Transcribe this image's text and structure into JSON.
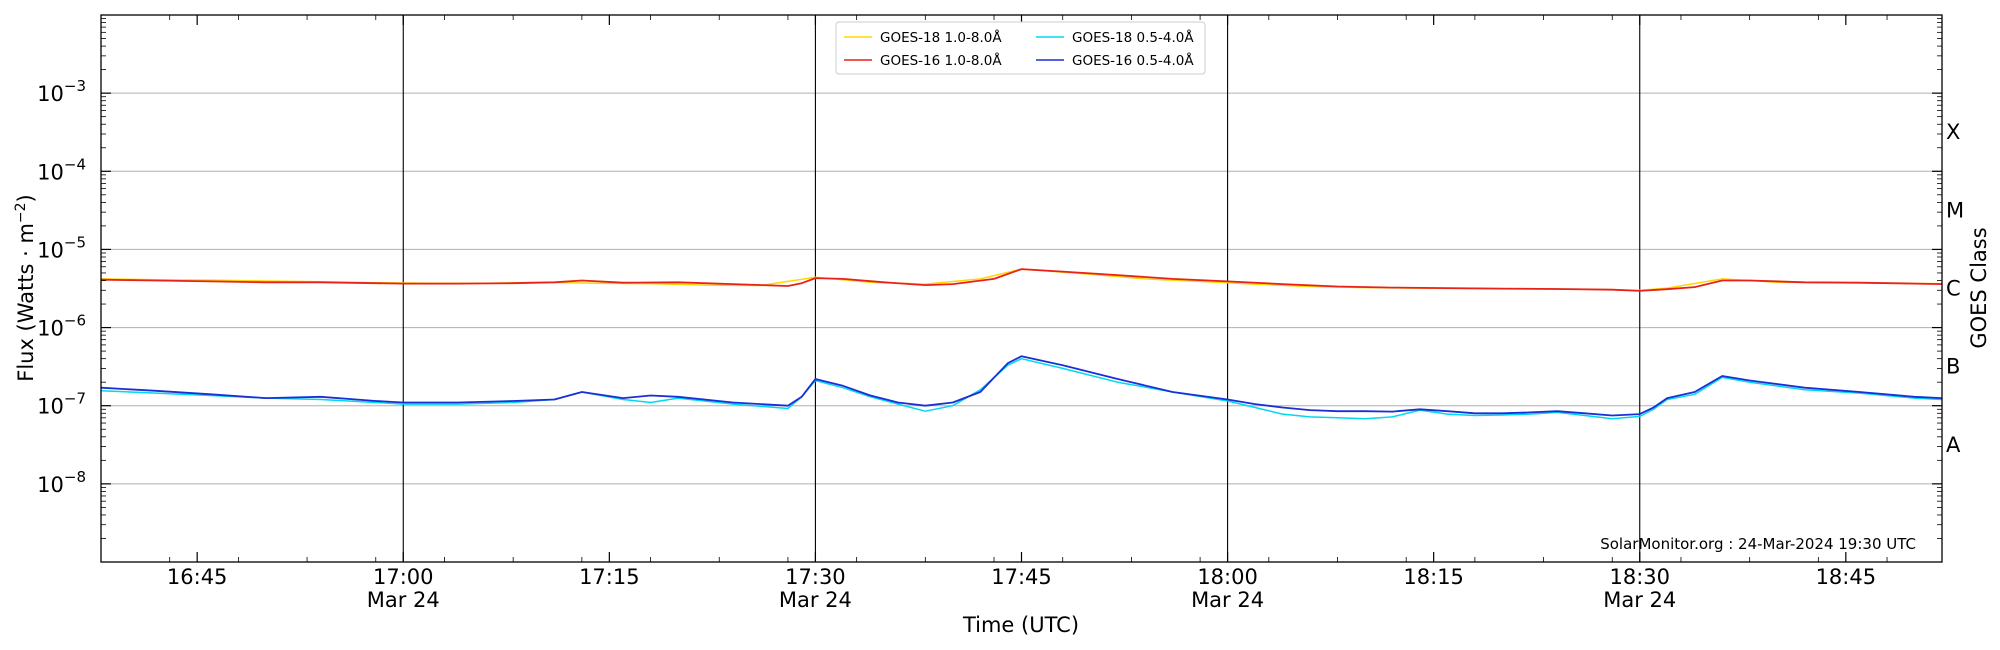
{
  "chart_data": {
    "type": "line",
    "title": "",
    "xlabel": "Time (UTC)",
    "ylabel_base": "Flux (Watts · m",
    "ylabel_exp": "−2",
    "ylabel_close": ")",
    "y2label": "GOES Class",
    "yscale": "log",
    "ylim": [
      1e-09,
      0.01
    ],
    "xlim_minutes": [
      0,
      134
    ],
    "grid": "horizontal",
    "legend_position": "top-center",
    "credit": "SolarMonitor.org : 24-Mar-2024 19:30 UTC",
    "y_ticks": [
      {
        "value": 1e-08,
        "base": "10",
        "exp": "−8"
      },
      {
        "value": 1e-07,
        "base": "10",
        "exp": "−7"
      },
      {
        "value": 1e-06,
        "base": "10",
        "exp": "−6"
      },
      {
        "value": 1e-05,
        "base": "10",
        "exp": "−5"
      },
      {
        "value": 0.0001,
        "base": "10",
        "exp": "−4"
      },
      {
        "value": 0.001,
        "base": "10",
        "exp": "−3"
      }
    ],
    "goes_classes": [
      {
        "label": "A",
        "value": 3.16e-08
      },
      {
        "label": "B",
        "value": 3.16e-07
      },
      {
        "label": "C",
        "value": 3.16e-06
      },
      {
        "label": "M",
        "value": 3.16e-05
      },
      {
        "label": "X",
        "value": 0.000316
      }
    ],
    "x_ticks": [
      {
        "minute": 7,
        "time": "16:45",
        "date": ""
      },
      {
        "minute": 22,
        "time": "17:00",
        "date": "Mar 24"
      },
      {
        "minute": 37,
        "time": "17:15",
        "date": ""
      },
      {
        "minute": 52,
        "time": "17:30",
        "date": "Mar 24"
      },
      {
        "minute": 67,
        "time": "17:45",
        "date": ""
      },
      {
        "minute": 82,
        "time": "18:00",
        "date": "Mar 24"
      },
      {
        "minute": 97,
        "time": "18:15",
        "date": ""
      },
      {
        "minute": 112,
        "time": "18:30",
        "date": "Mar 24"
      },
      {
        "minute": 127,
        "time": "18:45",
        "date": ""
      }
    ],
    "vertical_lines_minutes": [
      22,
      52,
      82,
      112
    ],
    "series": [
      {
        "name": "GOES-18 1.0-8.0Å",
        "color": "#ffd700",
        "x": [
          0,
          4,
          8,
          12,
          16,
          20,
          24,
          28,
          32,
          36,
          40,
          44,
          48,
          52,
          56,
          60,
          64,
          67,
          72,
          76,
          80,
          84,
          88,
          92,
          96,
          100,
          104,
          108,
          112,
          114,
          118,
          122,
          126,
          130,
          134
        ],
        "y": [
          4.2e-06,
          4.1e-06,
          4.05e-06,
          3.95e-06,
          3.85e-06,
          3.75e-06,
          3.7e-06,
          3.7e-06,
          3.8e-06,
          3.7e-06,
          3.65e-06,
          3.5e-06,
          3.45e-06,
          4.4e-06,
          3.8e-06,
          3.6e-06,
          4.2e-06,
          5.6e-06,
          4.8e-06,
          4.2e-06,
          3.9e-06,
          3.6e-06,
          3.35e-06,
          3.25e-06,
          3.2e-06,
          3.15e-06,
          3.12e-06,
          3.1e-06,
          3e-06,
          3.2e-06,
          4.2e-06,
          3.8e-06,
          3.75e-06,
          3.7e-06,
          3.65e-06
        ]
      },
      {
        "name": "GOES-16 1.0-8.0Å",
        "color": "#e8221a",
        "x": [
          0,
          4,
          8,
          12,
          16,
          20,
          22,
          26,
          30,
          33,
          35,
          38,
          42,
          46,
          50,
          51,
          52,
          54,
          57,
          60,
          62,
          65,
          67,
          70,
          74,
          78,
          82,
          86,
          90,
          94,
          98,
          102,
          106,
          110,
          112,
          114,
          116,
          118,
          120,
          124,
          128,
          132,
          134
        ],
        "y": [
          4.1e-06,
          4e-06,
          3.9e-06,
          3.8e-06,
          3.8e-06,
          3.7e-06,
          3.65e-06,
          3.65e-06,
          3.7e-06,
          3.8e-06,
          4e-06,
          3.75e-06,
          3.8e-06,
          3.6e-06,
          3.4e-06,
          3.7e-06,
          4.3e-06,
          4.2e-06,
          3.8e-06,
          3.5e-06,
          3.6e-06,
          4.2e-06,
          5.6e-06,
          5.2e-06,
          4.7e-06,
          4.2e-06,
          3.9e-06,
          3.6e-06,
          3.35e-06,
          3.25e-06,
          3.2e-06,
          3.15e-06,
          3.12e-06,
          3.05e-06,
          2.95e-06,
          3.1e-06,
          3.3e-06,
          4e-06,
          4e-06,
          3.8e-06,
          3.75e-06,
          3.65e-06,
          3.6e-06
        ]
      },
      {
        "name": "GOES-18 0.5-4.0Å",
        "color": "#00d8f0",
        "x": [
          0,
          4,
          8,
          12,
          16,
          20,
          22,
          26,
          30,
          33,
          35,
          38,
          40,
          42,
          46,
          50,
          51,
          52,
          54,
          56,
          58,
          60,
          62,
          64,
          66,
          67,
          70,
          74,
          78,
          82,
          84,
          86,
          88,
          90,
          92,
          94,
          96,
          98,
          100,
          102,
          104,
          106,
          108,
          110,
          112,
          113,
          114,
          116,
          118,
          120,
          124,
          128,
          132,
          134
        ],
        "y": [
          1.55e-07,
          1.45e-07,
          1.35e-07,
          1.25e-07,
          1.2e-07,
          1.1e-07,
          1.05e-07,
          1.05e-07,
          1.1e-07,
          1.2e-07,
          1.5e-07,
          1.2e-07,
          1.1e-07,
          1.25e-07,
          1.05e-07,
          9.2e-08,
          1.3e-07,
          2.1e-07,
          1.7e-07,
          1.3e-07,
          1.05e-07,
          8.5e-08,
          1e-07,
          1.6e-07,
          3.3e-07,
          4e-07,
          3e-07,
          2e-07,
          1.5e-07,
          1.15e-07,
          9.5e-08,
          7.8e-08,
          7.2e-08,
          7e-08,
          6.8e-08,
          7.2e-08,
          8.8e-08,
          7.8e-08,
          7.5e-08,
          7.6e-08,
          7.8e-08,
          8.2e-08,
          7.5e-08,
          6.8e-08,
          7.3e-08,
          9e-08,
          1.2e-07,
          1.4e-07,
          2.3e-07,
          2e-07,
          1.6e-07,
          1.45e-07,
          1.25e-07,
          1.2e-07
        ]
      },
      {
        "name": "GOES-16 0.5-4.0Å",
        "color": "#1a2fd6",
        "x": [
          0,
          4,
          8,
          12,
          16,
          20,
          22,
          26,
          30,
          33,
          35,
          38,
          40,
          42,
          46,
          50,
          51,
          52,
          54,
          56,
          58,
          60,
          62,
          64,
          66,
          67,
          70,
          74,
          78,
          82,
          84,
          86,
          88,
          90,
          92,
          94,
          96,
          98,
          100,
          102,
          104,
          106,
          108,
          110,
          112,
          113,
          114,
          116,
          118,
          120,
          124,
          128,
          132,
          134
        ],
        "y": [
          1.7e-07,
          1.55e-07,
          1.4e-07,
          1.25e-07,
          1.3e-07,
          1.15e-07,
          1.1e-07,
          1.1e-07,
          1.15e-07,
          1.2e-07,
          1.5e-07,
          1.25e-07,
          1.35e-07,
          1.3e-07,
          1.1e-07,
          1e-07,
          1.3e-07,
          2.2e-07,
          1.8e-07,
          1.35e-07,
          1.1e-07,
          1e-07,
          1.1e-07,
          1.5e-07,
          3.5e-07,
          4.3e-07,
          3.3e-07,
          2.2e-07,
          1.5e-07,
          1.2e-07,
          1.05e-07,
          9.5e-08,
          8.8e-08,
          8.5e-08,
          8.5e-08,
          8.4e-08,
          9e-08,
          8.5e-08,
          8e-08,
          8e-08,
          8.2e-08,
          8.5e-08,
          8e-08,
          7.5e-08,
          7.8e-08,
          9.5e-08,
          1.25e-07,
          1.5e-07,
          2.4e-07,
          2.1e-07,
          1.7e-07,
          1.5e-07,
          1.3e-07,
          1.25e-07
        ]
      }
    ]
  }
}
